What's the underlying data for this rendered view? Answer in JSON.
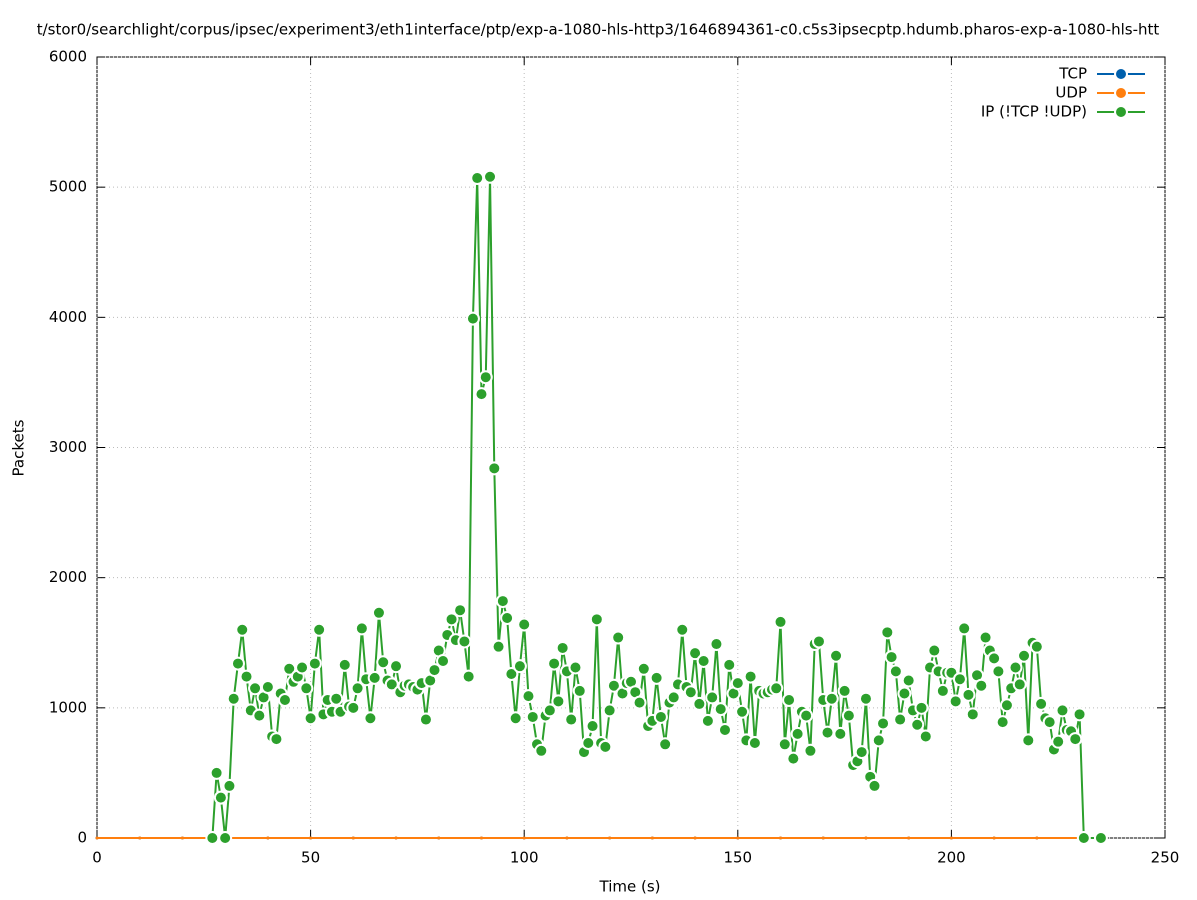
{
  "chart_data": {
    "type": "line",
    "title": "t/stor0/searchlight/corpus/ipsec/experiment3/eth1interface/ptp/exp-a-1080-hls-http3/1646894361-c0.c5s3ipsecptp.hdumb.pharos-exp-a-1080-hls-htt",
    "xlabel": "Time (s)",
    "ylabel": "Packets",
    "xlim": [
      0,
      250
    ],
    "xticks": [
      0,
      50,
      100,
      150,
      200,
      250
    ],
    "ylim": [
      0,
      6000
    ],
    "yticks": [
      0,
      1000,
      2000,
      3000,
      4000,
      5000,
      6000
    ],
    "grid": true,
    "legend": "top-right",
    "series": [
      {
        "name": "TCP",
        "color": "#0060ad",
        "x": [
          0,
          10,
          20,
          30,
          40,
          50,
          60,
          70,
          80,
          90,
          100,
          110,
          120,
          130,
          140,
          150,
          160,
          170,
          180,
          190,
          200,
          210,
          220,
          230
        ],
        "values": [
          0,
          0,
          0,
          0,
          0,
          0,
          0,
          0,
          0,
          0,
          0,
          0,
          0,
          0,
          0,
          0,
          0,
          0,
          0,
          0,
          0,
          0,
          0,
          0
        ]
      },
      {
        "name": "UDP",
        "color": "#ff7f0e",
        "x": [
          0,
          10,
          20,
          30,
          40,
          50,
          60,
          70,
          80,
          90,
          100,
          110,
          120,
          130,
          140,
          150,
          160,
          170,
          180,
          190,
          200,
          210,
          220,
          230
        ],
        "values": [
          0,
          0,
          0,
          0,
          0,
          0,
          0,
          0,
          0,
          0,
          0,
          0,
          0,
          0,
          0,
          0,
          0,
          0,
          0,
          0,
          0,
          0,
          0,
          0
        ]
      },
      {
        "name": "IP (!TCP  !UDP)",
        "color": "#2ca02c",
        "x": [
          27,
          28,
          29,
          30,
          31,
          32,
          33,
          34,
          35,
          36,
          37,
          38,
          39,
          40,
          41,
          42,
          43,
          44,
          45,
          46,
          47,
          48,
          49,
          50,
          51,
          52,
          53,
          54,
          55,
          56,
          57,
          58,
          59,
          60,
          61,
          62,
          63,
          64,
          65,
          66,
          67,
          68,
          69,
          70,
          71,
          72,
          73,
          74,
          75,
          76,
          77,
          78,
          79,
          80,
          81,
          82,
          83,
          84,
          85,
          86,
          87,
          88,
          89,
          90,
          91,
          92,
          93,
          94,
          95,
          96,
          97,
          98,
          99,
          100,
          101,
          102,
          103,
          104,
          105,
          106,
          107,
          108,
          109,
          110,
          111,
          112,
          113,
          114,
          115,
          116,
          117,
          118,
          119,
          120,
          121,
          122,
          123,
          124,
          125,
          126,
          127,
          128,
          129,
          130,
          131,
          132,
          133,
          134,
          135,
          136,
          137,
          138,
          139,
          140,
          141,
          142,
          143,
          144,
          145,
          146,
          147,
          148,
          149,
          150,
          151,
          152,
          153,
          154,
          155,
          156,
          157,
          158,
          159,
          160,
          161,
          162,
          163,
          164,
          165,
          166,
          167,
          168,
          169,
          170,
          171,
          172,
          173,
          174,
          175,
          176,
          177,
          178,
          179,
          180,
          181,
          182,
          183,
          184,
          185,
          186,
          187,
          188,
          189,
          190,
          191,
          192,
          193,
          194,
          195,
          196,
          197,
          198,
          199,
          200,
          201,
          202,
          203,
          204,
          205,
          206,
          207,
          208,
          209,
          210,
          211,
          212,
          213,
          214,
          215,
          216,
          217,
          218,
          219,
          220,
          221,
          222,
          223,
          224,
          225,
          226,
          227,
          228,
          229,
          230,
          231,
          235
        ],
        "values": [
          0,
          500,
          310,
          0,
          400,
          1070,
          1340,
          1600,
          1240,
          980,
          1150,
          940,
          1080,
          1160,
          780,
          760,
          1110,
          1060,
          1300,
          1200,
          1240,
          1310,
          1150,
          920,
          1340,
          1600,
          950,
          1060,
          970,
          1070,
          970,
          1330,
          1010,
          1000,
          1150,
          1610,
          1220,
          920,
          1230,
          1730,
          1350,
          1210,
          1180,
          1320,
          1120,
          1170,
          1180,
          1160,
          1140,
          1190,
          910,
          1210,
          1290,
          1440,
          1360,
          1560,
          1680,
          1520,
          1750,
          1510,
          1240,
          3990,
          5070,
          3410,
          3540,
          5080,
          2840,
          1470,
          1820,
          1690,
          1260,
          920,
          1320,
          1640,
          1090,
          930,
          720,
          670,
          940,
          980,
          1340,
          1050,
          1460,
          1280,
          910,
          1310,
          1130,
          660,
          730,
          860,
          1680,
          730,
          700,
          980,
          1170,
          1540,
          1110,
          1190,
          1200,
          1120,
          1040,
          1300,
          860,
          900,
          1230,
          930,
          720,
          1040,
          1080,
          1180,
          1600,
          1160,
          1120,
          1420,
          1030,
          1360,
          900,
          1080,
          1490,
          990,
          830,
          1330,
          1110,
          1190,
          970,
          750,
          1240,
          730,
          1130,
          1110,
          1120,
          1140,
          1150,
          1660,
          720,
          1060,
          610,
          800,
          970,
          940,
          670,
          1490,
          1510,
          1060,
          810,
          1070,
          1400,
          800,
          1130,
          940,
          560,
          590,
          660,
          1070,
          470,
          400,
          750,
          880,
          1580,
          1390,
          1280,
          910,
          1110,
          1210,
          980,
          870,
          1000,
          780,
          1310,
          1440,
          1280,
          1130,
          1270,
          1270,
          1050,
          1220,
          1610,
          1100,
          950,
          1250,
          1170,
          1540,
          1440,
          1380,
          1280,
          890,
          1020,
          1150,
          1310,
          1180,
          1400,
          750,
          1500,
          1470,
          1030,
          920,
          890,
          680,
          740,
          980,
          830,
          820,
          760,
          950,
          0,
          0
        ]
      }
    ]
  }
}
